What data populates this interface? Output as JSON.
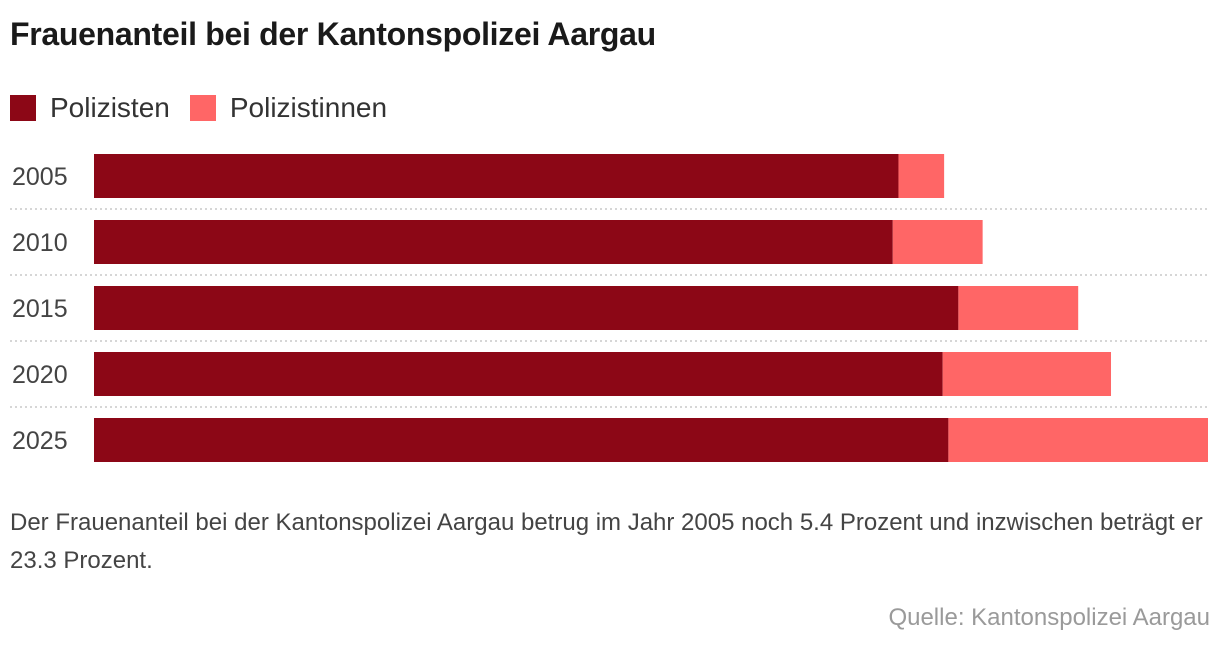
{
  "colors": {
    "polizisten": "#8c0716",
    "polizistinnen": "#ff6666",
    "separator": "#c8c8c8"
  },
  "chart_data": {
    "type": "bar",
    "orientation": "horizontal",
    "stacked": true,
    "title": "Frauenanteil bei der Kantonspolizei Aargau",
    "categories": [
      "2005",
      "2010",
      "2015",
      "2020",
      "2025"
    ],
    "series": [
      {
        "name": "Polizisten",
        "values": [
          564,
          560,
          606,
          595,
          599
        ]
      },
      {
        "name": "Polizistinnen",
        "values": [
          32,
          63,
          84,
          118,
          182
        ]
      }
    ],
    "xlim": [
      0,
      781
    ],
    "legend_position": "top-left",
    "grid": false
  },
  "description": "Der Frauenanteil bei der Kantonspolizei Aargau betrug im Jahr 2005 noch 5.4 Prozent und inzwischen beträgt er 23.3 Prozent.",
  "source": "Quelle: Kantonspolizei Aargau"
}
